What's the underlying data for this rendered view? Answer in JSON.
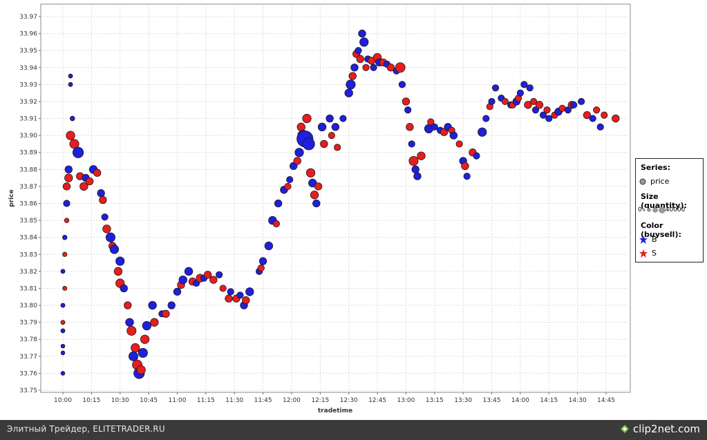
{
  "chart_data": {
    "type": "scatter",
    "xlabel": "tradetime",
    "ylabel": "price",
    "ylim": [
      33.75,
      33.97
    ],
    "xlim": [
      "09:55",
      "14:55"
    ],
    "y_ticks": [
      "33.75",
      "33.76",
      "33.77",
      "33.78",
      "33.79",
      "33.80",
      "33.81",
      "33.82",
      "33.83",
      "33.84",
      "33.85",
      "33.86",
      "33.87",
      "33.88",
      "33.89",
      "33.90",
      "33.91",
      "33.92",
      "33.93",
      "33.94",
      "33.95",
      "33.96",
      "33.97"
    ],
    "x_ticks": [
      "10:00",
      "10:15",
      "10:30",
      "10:45",
      "11:00",
      "11:15",
      "11:30",
      "11:45",
      "12:00",
      "12:15",
      "12:30",
      "12:45",
      "13:00",
      "13:15",
      "13:30",
      "13:45",
      "14:00",
      "14:15",
      "14:30",
      "14:45"
    ],
    "grid": true,
    "legend_position": "right",
    "size_label": "Size (quantity):",
    "size_range": [
      0,
      40000
    ],
    "color_label": "Color (buysell):",
    "series": [
      {
        "name": "B",
        "color": "#1f1fdd",
        "points": [
          [
            "10:00",
            33.76,
            200
          ],
          [
            "10:00",
            33.772,
            200
          ],
          [
            "10:00",
            33.776,
            200
          ],
          [
            "10:00",
            33.785,
            300
          ],
          [
            "10:00",
            33.8,
            300
          ],
          [
            "10:00",
            33.82,
            300
          ],
          [
            "10:01",
            33.84,
            500
          ],
          [
            "10:02",
            33.86,
            2000
          ],
          [
            "10:03",
            33.88,
            3000
          ],
          [
            "10:04",
            33.93,
            300
          ],
          [
            "10:04",
            33.935,
            300
          ],
          [
            "10:05",
            33.91,
            500
          ],
          [
            "10:08",
            33.89,
            9000
          ],
          [
            "10:12",
            33.875,
            3000
          ],
          [
            "10:16",
            33.88,
            4000
          ],
          [
            "10:20",
            33.866,
            3000
          ],
          [
            "10:22",
            33.852,
            2000
          ],
          [
            "10:25",
            33.84,
            6000
          ],
          [
            "10:27",
            33.833,
            5000
          ],
          [
            "10:30",
            33.826,
            5000
          ],
          [
            "10:32",
            33.81,
            3000
          ],
          [
            "10:35",
            33.79,
            4000
          ],
          [
            "10:37",
            33.77,
            6000
          ],
          [
            "10:40",
            33.76,
            9000
          ],
          [
            "10:42",
            33.772,
            6000
          ],
          [
            "10:44",
            33.788,
            5000
          ],
          [
            "10:47",
            33.8,
            4000
          ],
          [
            "10:52",
            33.795,
            2000
          ],
          [
            "10:57",
            33.8,
            3000
          ],
          [
            "11:00",
            33.808,
            3000
          ],
          [
            "11:03",
            33.815,
            4000
          ],
          [
            "11:06",
            33.82,
            4000
          ],
          [
            "11:10",
            33.813,
            2000
          ],
          [
            "11:14",
            33.816,
            2000
          ],
          [
            "11:22",
            33.818,
            2000
          ],
          [
            "11:28",
            33.808,
            2000
          ],
          [
            "11:33",
            33.806,
            2000
          ],
          [
            "11:35",
            33.8,
            3000
          ],
          [
            "11:38",
            33.808,
            4000
          ],
          [
            "11:43",
            33.82,
            2000
          ],
          [
            "11:45",
            33.826,
            3000
          ],
          [
            "11:48",
            33.835,
            4000
          ],
          [
            "11:50",
            33.85,
            4000
          ],
          [
            "11:53",
            33.86,
            3000
          ],
          [
            "11:56",
            33.868,
            3000
          ],
          [
            "11:59",
            33.874,
            2000
          ],
          [
            "12:01",
            33.882,
            3000
          ],
          [
            "12:04",
            33.89,
            5000
          ],
          [
            "12:06",
            33.9,
            9000
          ],
          [
            "12:07",
            33.898,
            26000
          ],
          [
            "12:09",
            33.895,
            12000
          ],
          [
            "12:11",
            33.872,
            4000
          ],
          [
            "12:13",
            33.86,
            3000
          ],
          [
            "12:16",
            33.905,
            4000
          ],
          [
            "12:20",
            33.91,
            3000
          ],
          [
            "12:23",
            33.905,
            3000
          ],
          [
            "12:27",
            33.91,
            2000
          ],
          [
            "12:30",
            33.925,
            4000
          ],
          [
            "12:31",
            33.93,
            6000
          ],
          [
            "12:33",
            33.94,
            3000
          ],
          [
            "12:35",
            33.95,
            2000
          ],
          [
            "12:37",
            33.96,
            3000
          ],
          [
            "12:38",
            33.955,
            5000
          ],
          [
            "12:40",
            33.945,
            2000
          ],
          [
            "12:43",
            33.94,
            2000
          ],
          [
            "12:46",
            33.943,
            3000
          ],
          [
            "12:50",
            33.942,
            2000
          ],
          [
            "12:55",
            33.938,
            2000
          ],
          [
            "12:58",
            33.93,
            2000
          ],
          [
            "13:01",
            33.915,
            2000
          ],
          [
            "13:03",
            33.895,
            2000
          ],
          [
            "13:05",
            33.88,
            3000
          ],
          [
            "13:06",
            33.876,
            3000
          ],
          [
            "13:12",
            33.904,
            5000
          ],
          [
            "13:15",
            33.905,
            2000
          ],
          [
            "13:18",
            33.903,
            2000
          ],
          [
            "13:22",
            33.905,
            3000
          ],
          [
            "13:25",
            33.9,
            3000
          ],
          [
            "13:30",
            33.885,
            3000
          ],
          [
            "13:32",
            33.876,
            2000
          ],
          [
            "13:37",
            33.888,
            2000
          ],
          [
            "13:40",
            33.902,
            5000
          ],
          [
            "13:42",
            33.91,
            2000
          ],
          [
            "13:45",
            33.92,
            2000
          ],
          [
            "13:47",
            33.928,
            2000
          ],
          [
            "13:50",
            33.922,
            2000
          ],
          [
            "13:55",
            33.918,
            2000
          ],
          [
            "13:58",
            33.92,
            3000
          ],
          [
            "14:00",
            33.925,
            2000
          ],
          [
            "14:02",
            33.93,
            2000
          ],
          [
            "14:05",
            33.928,
            2000
          ],
          [
            "14:08",
            33.915,
            2000
          ],
          [
            "14:12",
            33.912,
            2000
          ],
          [
            "14:15",
            33.91,
            2000
          ],
          [
            "14:20",
            33.914,
            3000
          ],
          [
            "14:25",
            33.915,
            2000
          ],
          [
            "14:28",
            33.918,
            2000
          ],
          [
            "14:32",
            33.92,
            2000
          ],
          [
            "14:38",
            33.91,
            2000
          ],
          [
            "14:42",
            33.905,
            2000
          ]
        ]
      },
      {
        "name": "S",
        "color": "#e81d1d",
        "points": [
          [
            "10:00",
            33.79,
            300
          ],
          [
            "10:01",
            33.81,
            300
          ],
          [
            "10:01",
            33.83,
            400
          ],
          [
            "10:02",
            33.85,
            500
          ],
          [
            "10:02",
            33.87,
            3000
          ],
          [
            "10:03",
            33.875,
            4000
          ],
          [
            "10:04",
            33.9,
            5000
          ],
          [
            "10:06",
            33.895,
            6000
          ],
          [
            "10:09",
            33.876,
            3000
          ],
          [
            "10:11",
            33.87,
            4000
          ],
          [
            "10:14",
            33.873,
            3000
          ],
          [
            "10:18",
            33.878,
            3000
          ],
          [
            "10:21",
            33.862,
            3000
          ],
          [
            "10:23",
            33.845,
            4000
          ],
          [
            "10:26",
            33.835,
            3000
          ],
          [
            "10:29",
            33.82,
            4000
          ],
          [
            "10:30",
            33.813,
            5000
          ],
          [
            "10:34",
            33.8,
            3000
          ],
          [
            "10:36",
            33.785,
            6000
          ],
          [
            "10:38",
            33.775,
            5000
          ],
          [
            "10:39",
            33.765,
            7000
          ],
          [
            "10:41",
            33.762,
            5000
          ],
          [
            "10:43",
            33.78,
            5000
          ],
          [
            "10:48",
            33.79,
            4000
          ],
          [
            "10:54",
            33.795,
            3000
          ],
          [
            "11:02",
            33.812,
            3000
          ],
          [
            "11:08",
            33.814,
            3000
          ],
          [
            "11:12",
            33.816,
            4000
          ],
          [
            "11:16",
            33.818,
            3000
          ],
          [
            "11:19",
            33.815,
            3000
          ],
          [
            "11:24",
            33.81,
            2000
          ],
          [
            "11:27",
            33.804,
            3000
          ],
          [
            "11:31",
            33.804,
            3000
          ],
          [
            "11:36",
            33.803,
            3000
          ],
          [
            "11:44",
            33.822,
            2000
          ],
          [
            "11:52",
            33.848,
            2000
          ],
          [
            "11:58",
            33.87,
            2000
          ],
          [
            "12:03",
            33.885,
            3000
          ],
          [
            "12:05",
            33.905,
            4000
          ],
          [
            "12:08",
            33.91,
            5000
          ],
          [
            "12:10",
            33.878,
            5000
          ],
          [
            "12:12",
            33.865,
            4000
          ],
          [
            "12:14",
            33.87,
            3000
          ],
          [
            "12:17",
            33.895,
            3000
          ],
          [
            "12:21",
            33.9,
            2000
          ],
          [
            "12:24",
            33.893,
            2000
          ],
          [
            "12:32",
            33.935,
            3000
          ],
          [
            "12:34",
            33.948,
            3000
          ],
          [
            "12:36",
            33.945,
            3000
          ],
          [
            "12:39",
            33.94,
            2000
          ],
          [
            "12:42",
            33.944,
            3000
          ],
          [
            "12:45",
            33.946,
            4000
          ],
          [
            "12:48",
            33.943,
            3000
          ],
          [
            "12:52",
            33.94,
            3000
          ],
          [
            "12:57",
            33.94,
            7000
          ],
          [
            "13:00",
            33.92,
            3000
          ],
          [
            "13:02",
            33.905,
            3000
          ],
          [
            "13:04",
            33.885,
            6000
          ],
          [
            "13:08",
            33.888,
            4000
          ],
          [
            "13:13",
            33.908,
            2000
          ],
          [
            "13:20",
            33.902,
            3000
          ],
          [
            "13:24",
            33.903,
            2000
          ],
          [
            "13:28",
            33.895,
            2000
          ],
          [
            "13:31",
            33.882,
            3000
          ],
          [
            "13:35",
            33.89,
            3000
          ],
          [
            "13:44",
            33.917,
            2000
          ],
          [
            "13:52",
            33.92,
            2000
          ],
          [
            "13:56",
            33.918,
            2000
          ],
          [
            "13:59",
            33.922,
            2000
          ],
          [
            "14:04",
            33.918,
            3000
          ],
          [
            "14:07",
            33.92,
            2000
          ],
          [
            "14:10",
            33.918,
            3000
          ],
          [
            "14:14",
            33.915,
            2000
          ],
          [
            "14:18",
            33.912,
            2000
          ],
          [
            "14:22",
            33.916,
            2000
          ],
          [
            "14:27",
            33.918,
            3000
          ],
          [
            "14:35",
            33.912,
            3000
          ],
          [
            "14:40",
            33.915,
            2000
          ],
          [
            "14:44",
            33.912,
            2000
          ],
          [
            "14:50",
            33.91,
            3000
          ]
        ]
      }
    ]
  },
  "legend": {
    "series_header": "Series:",
    "series_item": "price",
    "size_header": "Size (quantity):",
    "size_min": "0",
    "size_max": "40000",
    "color_header": "Color (buysell):",
    "color_items": [
      "B",
      "S"
    ]
  },
  "footer": {
    "caption": "Элитный Трейдер, ELITETRADER.RU",
    "brand": "clip2net.com"
  }
}
